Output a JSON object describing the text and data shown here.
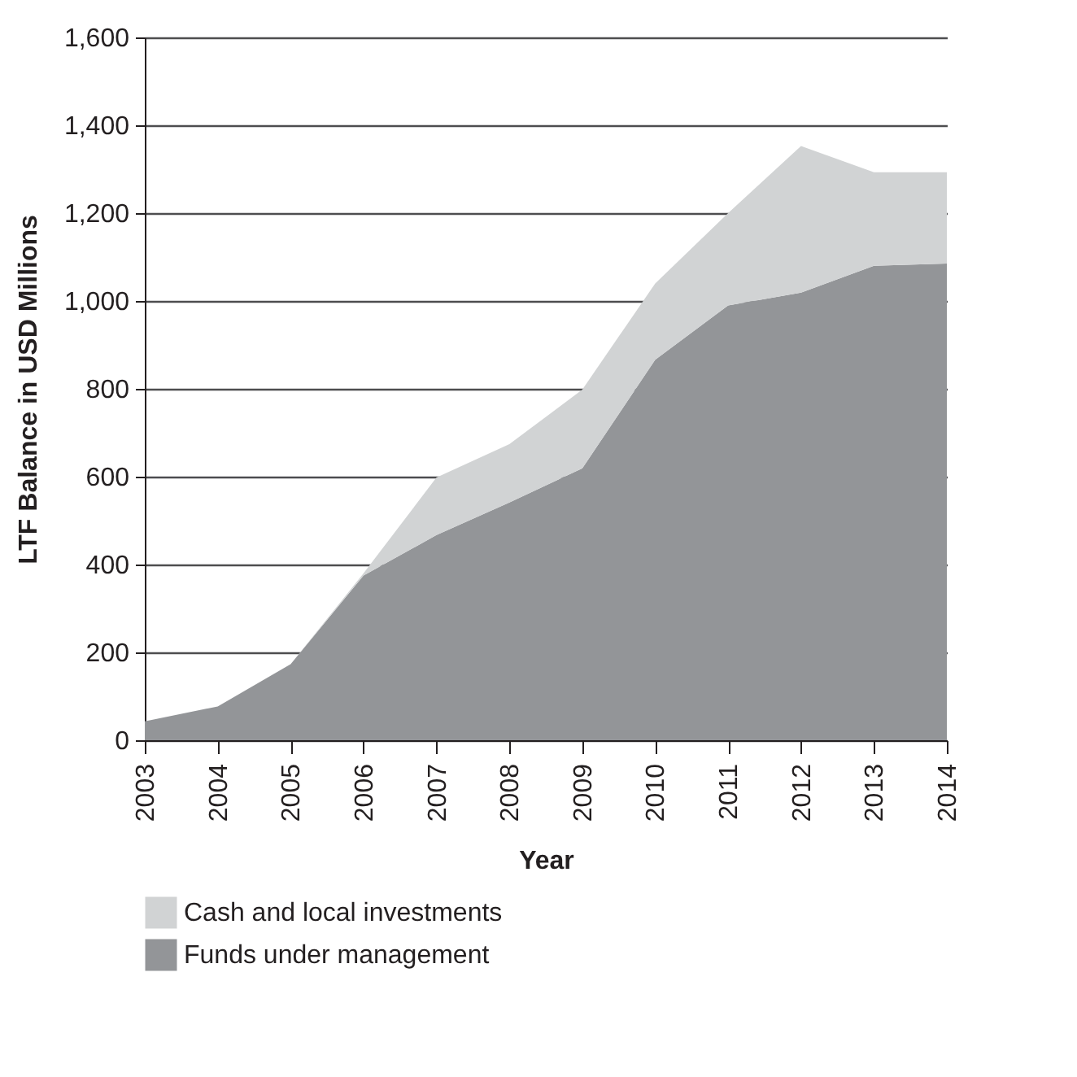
{
  "chart_data": {
    "type": "area",
    "stacked": true,
    "xlabel": "Year",
    "ylabel": "LTF Balance in USD Millions",
    "categories": [
      "2003",
      "2004",
      "2005",
      "2006",
      "2007",
      "2008",
      "2009",
      "2010",
      "2011",
      "2012",
      "2013",
      "2014"
    ],
    "series": [
      {
        "name": "Funds under management",
        "color": "#939598",
        "values": [
          43,
          77,
          173,
          375,
          467,
          541,
          619,
          866,
          990,
          1019,
          1080,
          1085
        ]
      },
      {
        "name": "Cash and local investments",
        "color": "#d1d3d4",
        "values": [
          0,
          0,
          0,
          5,
          131,
          133,
          179,
          174,
          210,
          334,
          213,
          208
        ]
      }
    ],
    "ylim": [
      0,
      1600
    ],
    "yticks": [
      {
        "value": 0,
        "label": "0"
      },
      {
        "value": 200,
        "label": "200"
      },
      {
        "value": 400,
        "label": "400"
      },
      {
        "value": 600,
        "label": "600"
      },
      {
        "value": 800,
        "label": "800"
      },
      {
        "value": 1000,
        "label": "1,000"
      },
      {
        "value": 1200,
        "label": "1,200"
      },
      {
        "value": 1400,
        "label": "1,400"
      },
      {
        "value": 1600,
        "label": "1,600"
      }
    ],
    "grid": "y",
    "legend": "bottom"
  }
}
